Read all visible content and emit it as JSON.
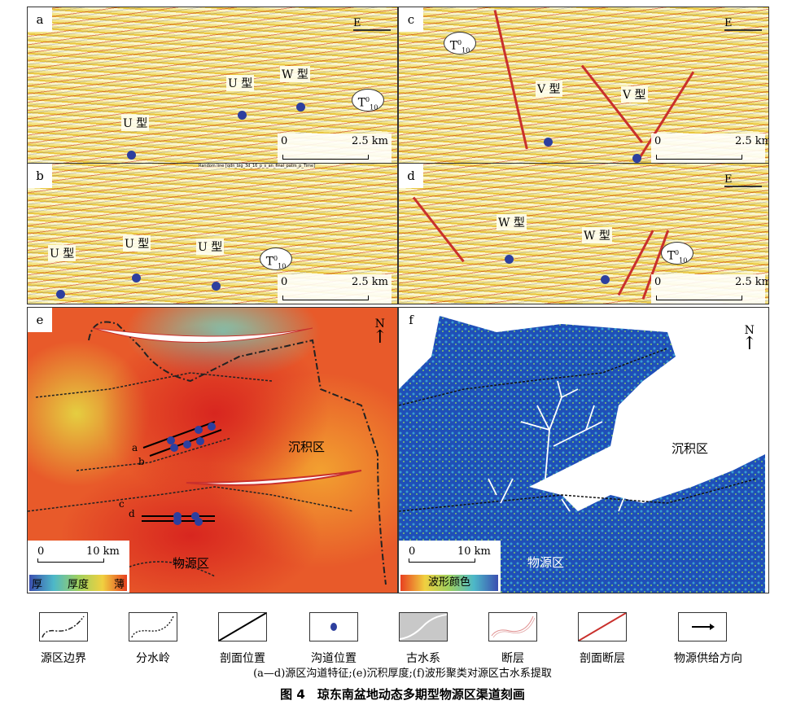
{
  "panels": {
    "a": {
      "label": "a",
      "direction": "E",
      "tags": [
        "U 型",
        "U 型",
        "W 型"
      ],
      "horizon": {
        "base": "T",
        "sup": "0",
        "sub": "10"
      },
      "scale": {
        "start": "0",
        "end": "2.5 km"
      }
    },
    "b": {
      "label": "b",
      "random_line": "Random line [qdn_big_3d_16_p_s_an_final_patm_p_Time]",
      "tags": [
        "U 型",
        "U 型",
        "U 型"
      ],
      "horizon": {
        "base": "T",
        "sup": "0",
        "sub": "10"
      },
      "scale": {
        "start": "0",
        "end": "2.5 km"
      }
    },
    "c": {
      "label": "c",
      "direction": "E",
      "tags": [
        "V 型",
        "V 型"
      ],
      "horizon": {
        "base": "T",
        "sup": "0",
        "sub": "10"
      },
      "scale": {
        "start": "0",
        "end": "2.5 km"
      }
    },
    "d": {
      "label": "d",
      "direction": "E",
      "tags": [
        "W 型",
        "W 型"
      ],
      "horizon": {
        "base": "T",
        "sup": "0",
        "sub": "10"
      },
      "scale": {
        "start": "0",
        "end": "2.5 km"
      }
    },
    "e": {
      "label": "e",
      "north": "N",
      "region_deposit": "沉积区",
      "region_source": "物源区",
      "section_labels": [
        "a",
        "b",
        "c",
        "d"
      ],
      "scale": {
        "start": "0",
        "end": "10 km"
      },
      "colorbar": {
        "left": "厚",
        "mid": "厚度",
        "right": "薄"
      }
    },
    "f": {
      "label": "f",
      "north": "N",
      "region_deposit": "沉积区",
      "region_source": "物源区",
      "scale": {
        "start": "0",
        "end": "10 km"
      },
      "colorbar": {
        "label": "波形颜色"
      }
    }
  },
  "legend": [
    {
      "icon": "source-boundary-icon",
      "label": "源区边界"
    },
    {
      "icon": "watershed-icon",
      "label": "分水岭"
    },
    {
      "icon": "section-position-icon",
      "label": "剖面位置"
    },
    {
      "icon": "channel-position-icon",
      "label": "沟道位置"
    },
    {
      "icon": "paleo-drainage-icon",
      "label": "古水系"
    },
    {
      "icon": "fault-icon",
      "label": "断层"
    },
    {
      "icon": "section-fault-icon",
      "label": "剖面断层"
    },
    {
      "icon": "supply-direction-icon",
      "label": "物源供给方向"
    }
  ],
  "caption": "(a—d)源区沟道特征;(e)沉积厚度;(f)波形聚类对源区古水系提取",
  "title": "图 4　琼东南盆地动态多期型物源区渠道刻画",
  "colors": {
    "channel_dot": "#2d3f9e",
    "fault": "#c9302c"
  }
}
